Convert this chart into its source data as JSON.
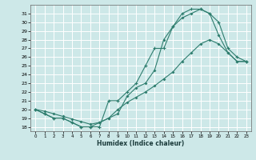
{
  "xlabel": "Humidex (Indice chaleur)",
  "bg_color": "#cde8e8",
  "grid_color": "#ffffff",
  "line_color": "#2e7d6e",
  "xlim": [
    -0.5,
    23.5
  ],
  "ylim": [
    17.5,
    32.0
  ],
  "xticks": [
    0,
    1,
    2,
    3,
    4,
    5,
    6,
    7,
    8,
    9,
    10,
    11,
    12,
    13,
    14,
    15,
    16,
    17,
    18,
    19,
    20,
    21,
    22,
    23
  ],
  "yticks": [
    18,
    19,
    20,
    21,
    22,
    23,
    24,
    25,
    26,
    27,
    28,
    29,
    30,
    31
  ],
  "line1_x": [
    0,
    1,
    2,
    3,
    4,
    5,
    6,
    7,
    8,
    9,
    10,
    11,
    12,
    13,
    14,
    15,
    16,
    17,
    18,
    19,
    20,
    21,
    22,
    23
  ],
  "line1_y": [
    20.0,
    19.5,
    19.0,
    19.0,
    18.5,
    18.0,
    18.0,
    18.5,
    19.0,
    19.5,
    21.5,
    22.5,
    23.0,
    24.5,
    28.0,
    29.5,
    30.5,
    31.0,
    31.5,
    31.0,
    28.5,
    26.5,
    25.5,
    25.5
  ],
  "line2_x": [
    0,
    1,
    2,
    3,
    4,
    5,
    6,
    7,
    8,
    9,
    10,
    11,
    12,
    13,
    14,
    15,
    16,
    17,
    18,
    19,
    20,
    21,
    22,
    23
  ],
  "line2_y": [
    20.0,
    19.5,
    19.0,
    19.0,
    18.5,
    18.0,
    18.0,
    18.0,
    21.0,
    21.0,
    22.0,
    23.0,
    25.0,
    27.0,
    27.0,
    29.5,
    31.0,
    31.5,
    31.5,
    31.0,
    30.0,
    27.0,
    26.0,
    25.5
  ],
  "line3_x": [
    0,
    1,
    2,
    3,
    4,
    5,
    6,
    7,
    8,
    9,
    10,
    11,
    12,
    13,
    14,
    15,
    16,
    17,
    18,
    19,
    20,
    21,
    22,
    23
  ],
  "line3_y": [
    20.0,
    19.8,
    19.5,
    19.2,
    18.9,
    18.6,
    18.3,
    18.5,
    19.0,
    20.0,
    20.8,
    21.4,
    22.0,
    22.7,
    23.5,
    24.3,
    25.5,
    26.5,
    27.5,
    28.0,
    27.5,
    26.5,
    25.5,
    25.5
  ]
}
